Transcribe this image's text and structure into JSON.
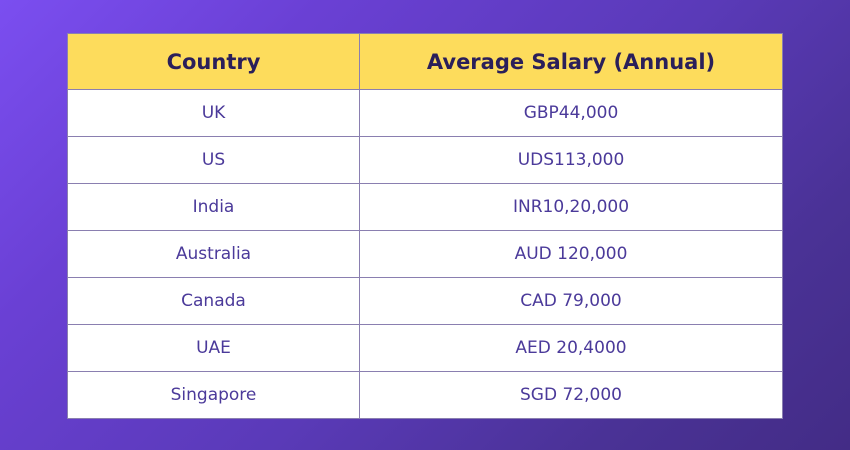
{
  "table": {
    "headers": [
      "Country",
      "Average Salary (Annual)"
    ],
    "rows": [
      {
        "country": "UK",
        "salary": "GBP44,000"
      },
      {
        "country": "US",
        "salary": "UDS113,000"
      },
      {
        "country": "India",
        "salary": "INR10,20,000"
      },
      {
        "country": "Australia",
        "salary": "AUD 120,000"
      },
      {
        "country": "Canada",
        "salary": "CAD 79,000"
      },
      {
        "country": "UAE",
        "salary": "AED 20,4000"
      },
      {
        "country": "Singapore",
        "salary": "SGD 72,000"
      }
    ]
  },
  "colors": {
    "header_bg": "#fddc5c",
    "header_text": "#2a1f5a",
    "cell_text": "#4b3a9a",
    "background_start": "#7b4ef0",
    "background_end": "#432c86"
  }
}
